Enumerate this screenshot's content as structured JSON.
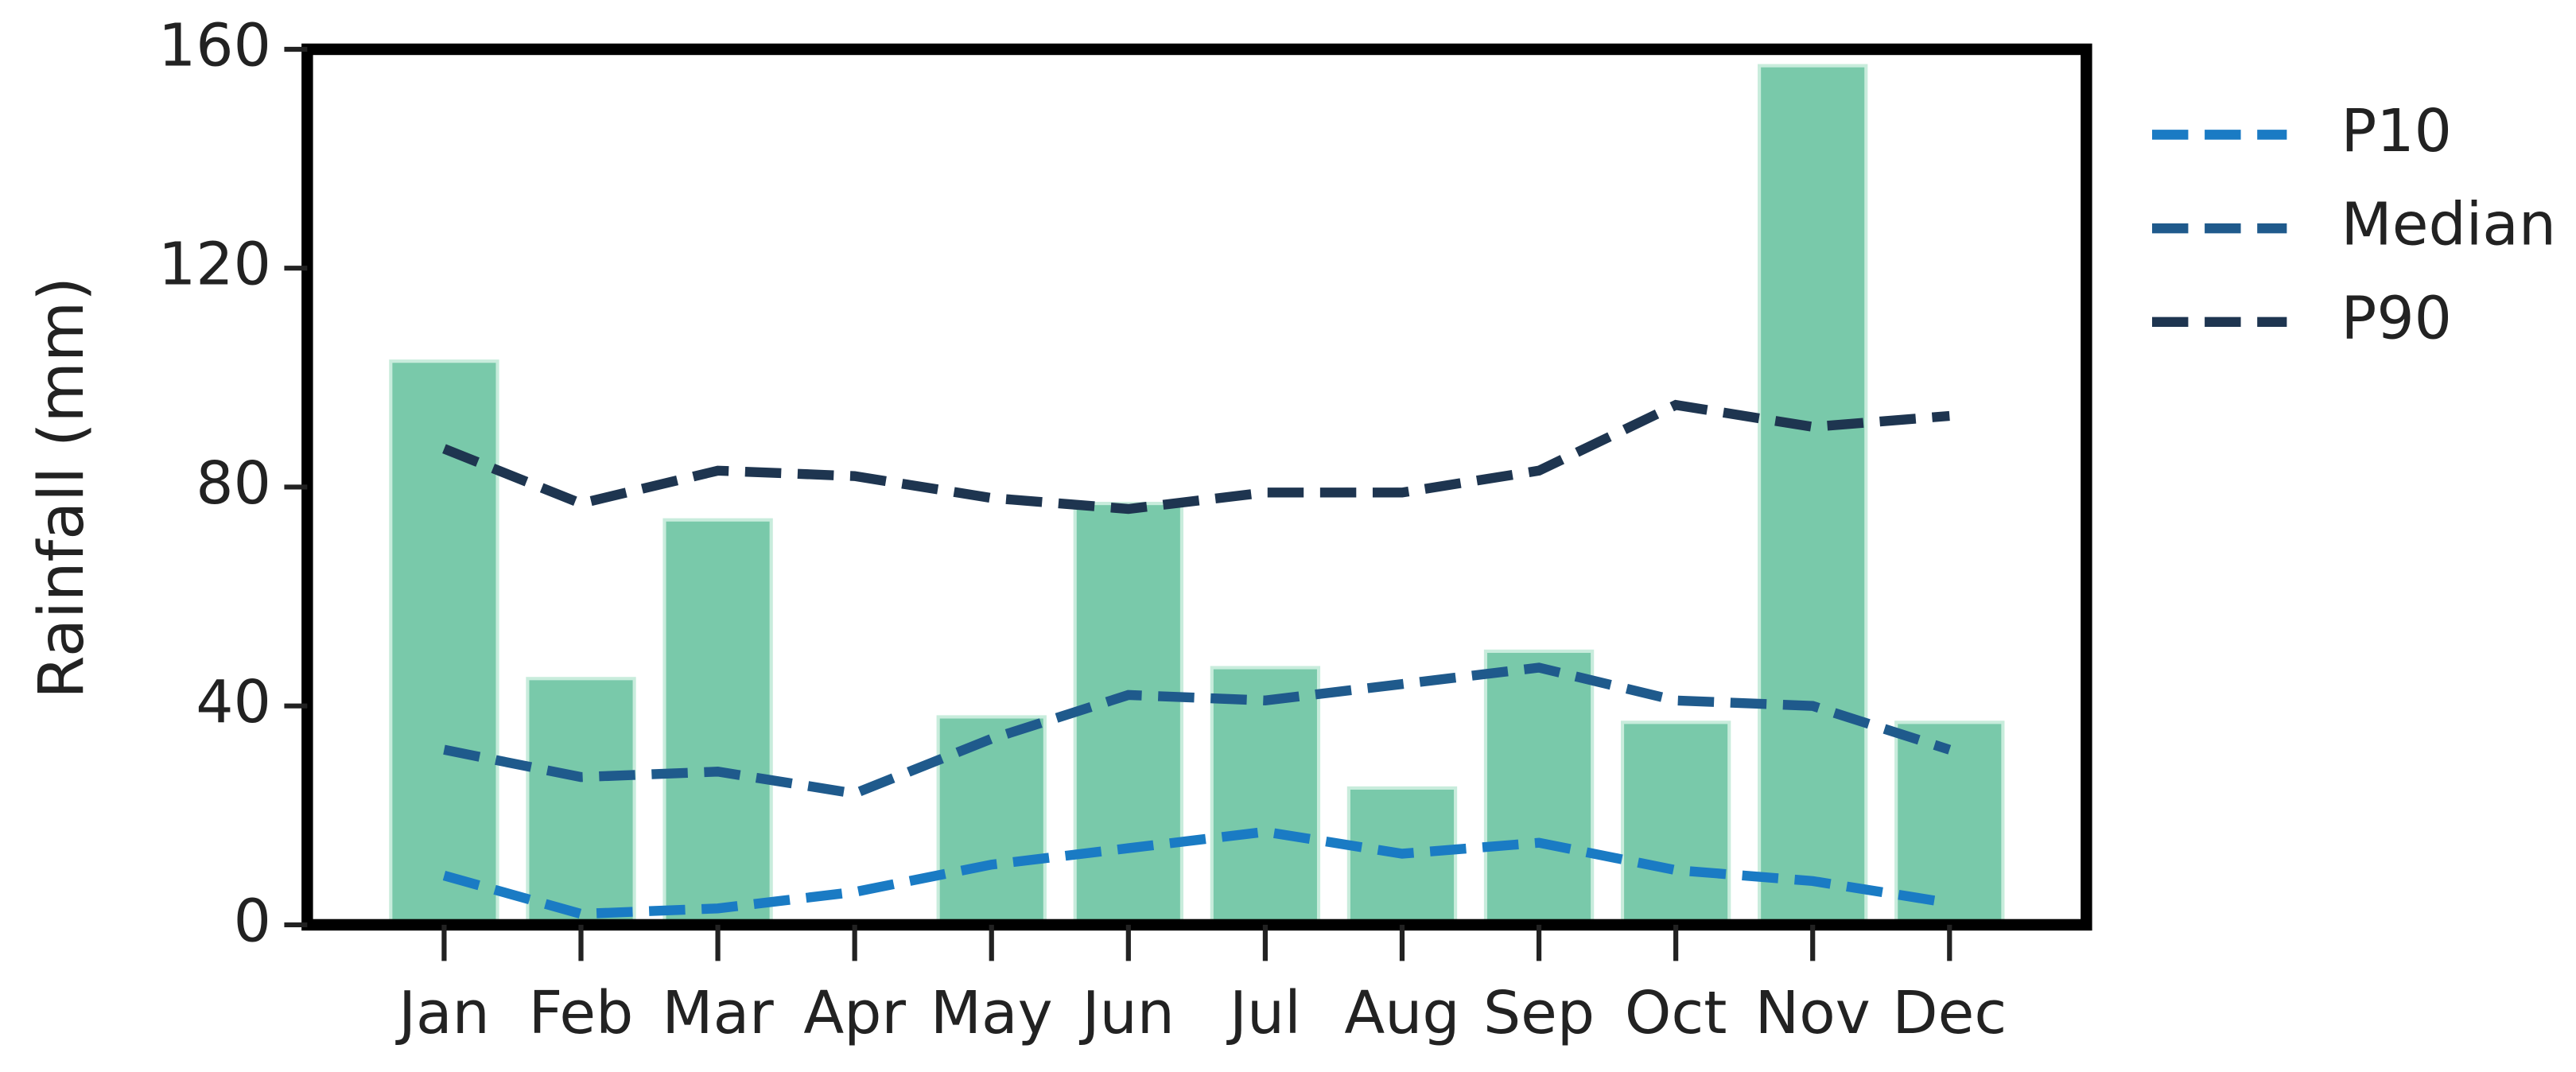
{
  "chart_data": {
    "type": "bar-line",
    "y_label": "Rainfall (mm)",
    "categories": [
      "Jan",
      "Feb",
      "Mar",
      "Apr",
      "May",
      "Jun",
      "Jul",
      "Aug",
      "Sep",
      "Oct",
      "Nov",
      "Dec"
    ],
    "values": [
      103,
      45,
      74,
      0,
      38,
      77,
      47,
      25,
      50,
      37,
      157,
      37
    ],
    "color": "#79c9aa",
    "series": [
      {
        "name": "P10",
        "color": "#1a7bc4",
        "values": [
          9,
          2,
          3,
          6,
          11,
          14,
          17,
          13,
          15,
          10,
          8,
          4
        ]
      },
      {
        "name": "Median",
        "color": "#1f5a8c",
        "values": [
          32,
          27,
          28,
          24,
          34,
          42,
          41,
          44,
          47,
          41,
          40,
          32
        ]
      },
      {
        "name": "P90",
        "color": "#1e3550",
        "values": [
          87,
          77,
          83,
          82,
          78,
          76,
          79,
          79,
          83,
          95,
          91,
          93
        ]
      }
    ],
    "ylim": [
      0,
      160
    ],
    "yticks": [
      0,
      40,
      80,
      120,
      160
    ],
    "legend": "outside-right-top"
  }
}
